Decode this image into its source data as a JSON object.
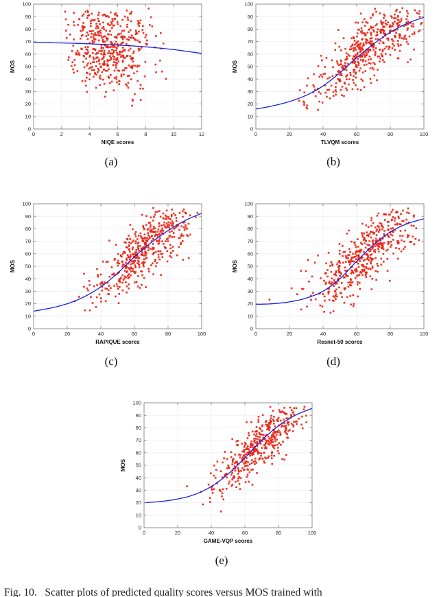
{
  "page": {
    "caption": "Fig. 10.   Scatter plots of predicted quality scores versus MOS trained with"
  },
  "colors": {
    "point": "#ee2212",
    "curve": "#1822dd",
    "axis": "#888888",
    "grid": "#ededed",
    "tick_text": "#262626"
  },
  "chart_data": [
    {
      "id": "a",
      "caption": "(a)",
      "type": "scatter",
      "xlabel": "NIQE scores",
      "ylabel": "MOS",
      "xlim": [
        0,
        12
      ],
      "ylim": [
        0,
        100
      ],
      "xticks": [
        0,
        2,
        4,
        6,
        8,
        10,
        12
      ],
      "yticks": [
        0,
        10,
        20,
        30,
        40,
        50,
        60,
        70,
        80,
        90,
        100
      ],
      "legend": null,
      "grid": true,
      "fit_curve": [
        [
          0,
          69.3
        ],
        [
          2,
          68.9
        ],
        [
          4,
          68.2
        ],
        [
          6,
          67.2
        ],
        [
          8,
          65.8
        ],
        [
          10,
          63.6
        ],
        [
          12,
          60.5
        ]
      ],
      "scatter_spec": {
        "n": 480,
        "seed": 12,
        "x": {
          "mean": 5.3,
          "sd": 1.45,
          "min": 2.2,
          "max": 11.8
        },
        "y": {
          "mode": "independent",
          "mean": 65,
          "sd": 17,
          "min": 13,
          "max": 97
        }
      }
    },
    {
      "id": "b",
      "caption": "(b)",
      "type": "scatter",
      "xlabel": "TLVQM scores",
      "ylabel": "MOS",
      "xlim": [
        0,
        100
      ],
      "ylim": [
        0,
        100
      ],
      "xticks": [
        0,
        20,
        40,
        60,
        80,
        100
      ],
      "yticks": [
        0,
        10,
        20,
        30,
        40,
        50,
        60,
        70,
        80,
        90,
        100
      ],
      "legend": null,
      "grid": true,
      "fit_curve": [
        [
          0,
          16
        ],
        [
          10,
          18.5
        ],
        [
          20,
          22
        ],
        [
          30,
          27
        ],
        [
          40,
          34.5
        ],
        [
          50,
          45
        ],
        [
          60,
          57
        ],
        [
          70,
          68
        ],
        [
          80,
          77.5
        ],
        [
          90,
          84.5
        ],
        [
          100,
          89.5
        ]
      ],
      "scatter_spec": {
        "n": 470,
        "seed": 23,
        "x": {
          "mean": 67,
          "sd": 16,
          "min": 17,
          "max": 99
        },
        "y": {
          "mode": "around_curve",
          "noise_sd": 12,
          "min": 5,
          "max": 97
        }
      }
    },
    {
      "id": "c",
      "caption": "(c)",
      "type": "scatter",
      "xlabel": "RAPIQUE scores",
      "ylabel": "MOS",
      "xlim": [
        0,
        100
      ],
      "ylim": [
        0,
        100
      ],
      "xticks": [
        0,
        20,
        40,
        60,
        80,
        100
      ],
      "yticks": [
        0,
        10,
        20,
        30,
        40,
        50,
        60,
        70,
        80,
        90,
        100
      ],
      "legend": null,
      "grid": true,
      "fit_curve": [
        [
          0,
          14
        ],
        [
          10,
          16.5
        ],
        [
          20,
          20
        ],
        [
          30,
          25.5
        ],
        [
          40,
          33.5
        ],
        [
          50,
          44.5
        ],
        [
          60,
          57.5
        ],
        [
          70,
          69
        ],
        [
          80,
          78.5
        ],
        [
          90,
          86.5
        ],
        [
          100,
          92.5
        ]
      ],
      "scatter_spec": {
        "n": 480,
        "seed": 34,
        "x": {
          "mean": 65,
          "sd": 15,
          "min": 7,
          "max": 98
        },
        "y": {
          "mode": "around_curve",
          "noise_sd": 11,
          "min": 8,
          "max": 97
        }
      }
    },
    {
      "id": "d",
      "caption": "(d)",
      "type": "scatter",
      "xlabel": "Resnet-50 scores",
      "ylabel": "MOS",
      "xlim": [
        0,
        100
      ],
      "ylim": [
        0,
        100
      ],
      "xticks": [
        0,
        20,
        40,
        60,
        80,
        100
      ],
      "yticks": [
        0,
        10,
        20,
        30,
        40,
        50,
        60,
        70,
        80,
        90,
        100
      ],
      "legend": null,
      "grid": true,
      "fit_curve": [
        [
          0,
          19.5
        ],
        [
          10,
          20
        ],
        [
          20,
          21.5
        ],
        [
          30,
          24.5
        ],
        [
          40,
          30
        ],
        [
          50,
          40
        ],
        [
          60,
          54
        ],
        [
          70,
          67
        ],
        [
          80,
          77.5
        ],
        [
          90,
          84
        ],
        [
          100,
          88
        ]
      ],
      "scatter_spec": {
        "n": 480,
        "seed": 45,
        "x": {
          "mean": 64,
          "sd": 15,
          "min": 8,
          "max": 98
        },
        "y": {
          "mode": "around_curve",
          "noise_sd": 12,
          "min": 10,
          "max": 97
        }
      }
    },
    {
      "id": "e",
      "caption": "(e)",
      "type": "scatter",
      "xlabel": "GAME-VQP scores",
      "ylabel": "MOS",
      "xlim": [
        0,
        100
      ],
      "ylim": [
        0,
        100
      ],
      "xticks": [
        0,
        20,
        40,
        60,
        80,
        100
      ],
      "yticks": [
        0,
        10,
        20,
        30,
        40,
        50,
        60,
        70,
        80,
        90,
        100
      ],
      "legend": null,
      "grid": true,
      "fit_curve": [
        [
          0,
          20
        ],
        [
          10,
          21
        ],
        [
          20,
          23
        ],
        [
          30,
          26.5
        ],
        [
          40,
          33
        ],
        [
          50,
          43
        ],
        [
          60,
          56
        ],
        [
          70,
          70
        ],
        [
          80,
          81.5
        ],
        [
          90,
          90
        ],
        [
          100,
          95.5
        ]
      ],
      "scatter_spec": {
        "n": 430,
        "seed": 56,
        "x": {
          "mean": 67,
          "sd": 13,
          "min": 22,
          "max": 97
        },
        "y": {
          "mode": "around_curve",
          "noise_sd": 10,
          "min": 5,
          "max": 97
        }
      }
    }
  ]
}
